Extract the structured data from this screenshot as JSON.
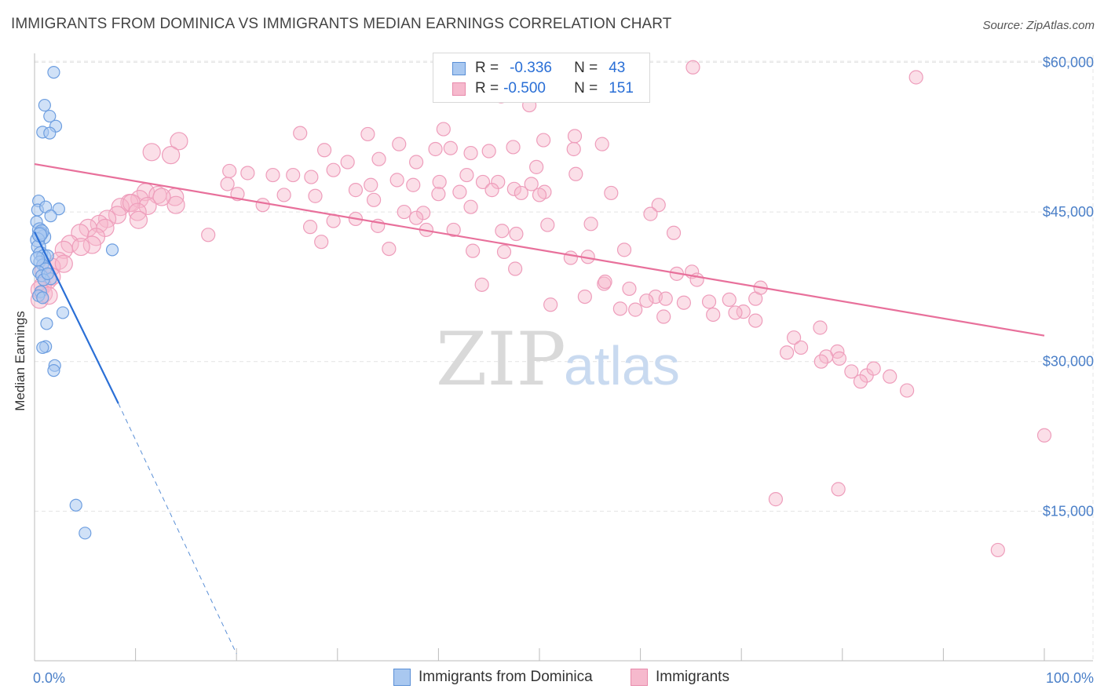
{
  "title": "IMMIGRANTS FROM DOMINICA VS IMMIGRANTS MEDIAN EARNINGS CORRELATION CHART",
  "source": "Source: ZipAtlas.com",
  "watermark": {
    "zip": "ZIP",
    "atlas": "atlas"
  },
  "colors": {
    "blue": "#2a6fd6",
    "blue_fill": "#a9c8f0",
    "pink": "#e87aa0",
    "pink_fill": "#f6b9cd",
    "tick": "#4a7fc8"
  },
  "legend": {
    "r_label": "R =",
    "n_label": "N =",
    "rows": [
      {
        "r": "-0.336",
        "n": "43",
        "series": "blue"
      },
      {
        "r": "-0.500",
        "n": "151",
        "series": "pink"
      }
    ]
  },
  "chart_data": {
    "type": "scatter",
    "title": "IMMIGRANTS FROM DOMINICA VS IMMIGRANTS MEDIAN EARNINGS CORRELATION CHART",
    "xlabel": "",
    "ylabel": "Median Earnings",
    "xlim": [
      0,
      100
    ],
    "ylim": [
      0,
      62000
    ],
    "x_tick_labels": [
      "0.0%",
      "100.0%"
    ],
    "y_ticks": [
      {
        "value": 15000,
        "label": "$15,000"
      },
      {
        "value": 30000,
        "label": "$30,000"
      },
      {
        "value": 45000,
        "label": "$45,000"
      },
      {
        "value": 60000,
        "label": "$60,000"
      }
    ],
    "series": [
      {
        "name": "Immigrants from Dominica",
        "color": "#2a6fd6",
        "trend": {
          "x0": 0.0,
          "y0": 43000,
          "x1": 8.3,
          "y1": 25800,
          "dash_to_x": 20.0,
          "dash_to_y": 700
        },
        "points": [
          [
            1.9,
            59000
          ],
          [
            1.0,
            55700
          ],
          [
            1.5,
            54600
          ],
          [
            2.1,
            53600
          ],
          [
            0.8,
            53000
          ],
          [
            1.5,
            52900
          ],
          [
            0.4,
            46100
          ],
          [
            0.3,
            45200
          ],
          [
            1.1,
            45500
          ],
          [
            2.4,
            45300
          ],
          [
            1.6,
            44600
          ],
          [
            0.2,
            44000
          ],
          [
            0.5,
            43200
          ],
          [
            0.6,
            42800
          ],
          [
            0.9,
            42500
          ],
          [
            0.7,
            43000
          ],
          [
            0.3,
            42200
          ],
          [
            0.4,
            41500
          ],
          [
            0.6,
            40800
          ],
          [
            0.9,
            40500
          ],
          [
            1.3,
            40600
          ],
          [
            0.5,
            40000
          ],
          [
            0.8,
            39700
          ],
          [
            1.1,
            39300
          ],
          [
            0.4,
            39000
          ],
          [
            0.7,
            38600
          ],
          [
            1.6,
            38300
          ],
          [
            0.9,
            38200
          ],
          [
            0.6,
            37000
          ],
          [
            0.4,
            36600
          ],
          [
            0.8,
            36400
          ],
          [
            2.8,
            34900
          ],
          [
            1.2,
            33800
          ],
          [
            1.1,
            31500
          ],
          [
            0.8,
            31400
          ],
          [
            2.0,
            29600
          ],
          [
            1.9,
            29100
          ],
          [
            7.7,
            41200
          ],
          [
            4.1,
            15600
          ],
          [
            5.0,
            12800
          ],
          [
            0.3,
            40300
          ],
          [
            1.3,
            38800
          ],
          [
            0.5,
            42700
          ]
        ]
      },
      {
        "name": "Immigrants",
        "color": "#e87aa0",
        "trend": {
          "x0": 0.0,
          "y0": 49800,
          "x1": 100.0,
          "y1": 32600
        },
        "points": [
          [
            65.2,
            59500
          ],
          [
            87.3,
            58500
          ],
          [
            46.2,
            56600
          ],
          [
            49.0,
            55700
          ],
          [
            40.5,
            53300
          ],
          [
            33.0,
            52800
          ],
          [
            14.3,
            52100
          ],
          [
            50.4,
            52200
          ],
          [
            53.5,
            52600
          ],
          [
            47.4,
            51500
          ],
          [
            26.3,
            52900
          ],
          [
            36.1,
            51800
          ],
          [
            41.2,
            51400
          ],
          [
            28.7,
            51200
          ],
          [
            39.7,
            51300
          ],
          [
            45.0,
            51100
          ],
          [
            56.2,
            51800
          ],
          [
            53.4,
            51300
          ],
          [
            34.1,
            50300
          ],
          [
            31.0,
            50000
          ],
          [
            43.2,
            50900
          ],
          [
            13.5,
            50700
          ],
          [
            11.6,
            51000
          ],
          [
            37.8,
            50000
          ],
          [
            49.7,
            49500
          ],
          [
            53.6,
            48800
          ],
          [
            23.6,
            48700
          ],
          [
            25.6,
            48700
          ],
          [
            29.6,
            49200
          ],
          [
            19.3,
            49100
          ],
          [
            21.1,
            48900
          ],
          [
            44.4,
            48000
          ],
          [
            45.9,
            48000
          ],
          [
            49.2,
            47800
          ],
          [
            37.5,
            47700
          ],
          [
            33.3,
            47700
          ],
          [
            27.4,
            48500
          ],
          [
            35.9,
            48200
          ],
          [
            40.1,
            48000
          ],
          [
            42.8,
            48700
          ],
          [
            19.1,
            47800
          ],
          [
            31.8,
            47200
          ],
          [
            42.1,
            47000
          ],
          [
            47.5,
            47300
          ],
          [
            45.3,
            47200
          ],
          [
            50.5,
            47000
          ],
          [
            48.2,
            46900
          ],
          [
            57.1,
            46900
          ],
          [
            50.0,
            46700
          ],
          [
            33.6,
            46200
          ],
          [
            20.1,
            46800
          ],
          [
            24.7,
            46700
          ],
          [
            13.9,
            46500
          ],
          [
            11.0,
            47000
          ],
          [
            12.2,
            46700
          ],
          [
            10.4,
            46300
          ],
          [
            9.4,
            45900
          ],
          [
            8.5,
            45500
          ],
          [
            9.6,
            45900
          ],
          [
            14.0,
            45700
          ],
          [
            12.6,
            46500
          ],
          [
            11.2,
            45600
          ],
          [
            10.2,
            45000
          ],
          [
            22.6,
            45700
          ],
          [
            27.8,
            46600
          ],
          [
            43.2,
            45500
          ],
          [
            38.5,
            44900
          ],
          [
            36.6,
            45000
          ],
          [
            61.8,
            45700
          ],
          [
            61.0,
            44800
          ],
          [
            8.2,
            44700
          ],
          [
            7.2,
            44300
          ],
          [
            10.3,
            44200
          ],
          [
            6.4,
            43800
          ],
          [
            7.0,
            43400
          ],
          [
            5.3,
            43400
          ],
          [
            4.5,
            42900
          ],
          [
            6.1,
            42500
          ],
          [
            31.8,
            44300
          ],
          [
            29.6,
            44100
          ],
          [
            37.8,
            44400
          ],
          [
            34.0,
            43600
          ],
          [
            27.3,
            43500
          ],
          [
            38.8,
            43200
          ],
          [
            41.5,
            43200
          ],
          [
            46.3,
            43100
          ],
          [
            50.8,
            43700
          ],
          [
            55.1,
            43800
          ],
          [
            47.7,
            42800
          ],
          [
            5.7,
            41700
          ],
          [
            3.5,
            41800
          ],
          [
            4.6,
            41500
          ],
          [
            2.9,
            41200
          ],
          [
            17.2,
            42700
          ],
          [
            28.4,
            42000
          ],
          [
            35.1,
            41300
          ],
          [
            43.4,
            41100
          ],
          [
            46.5,
            41000
          ],
          [
            53.1,
            40400
          ],
          [
            54.8,
            40500
          ],
          [
            2.4,
            40100
          ],
          [
            1.7,
            39500
          ],
          [
            2.9,
            39800
          ],
          [
            0.9,
            39100
          ],
          [
            1.7,
            38500
          ],
          [
            1.3,
            38100
          ],
          [
            0.8,
            37600
          ],
          [
            0.5,
            37200
          ],
          [
            0.9,
            36800
          ],
          [
            0.5,
            36200
          ],
          [
            1.4,
            36600
          ],
          [
            47.6,
            39300
          ],
          [
            44.3,
            37700
          ],
          [
            58.4,
            41200
          ],
          [
            63.6,
            38800
          ],
          [
            65.1,
            39000
          ],
          [
            56.4,
            37800
          ],
          [
            58.9,
            37300
          ],
          [
            61.5,
            36500
          ],
          [
            60.6,
            36100
          ],
          [
            62.5,
            36300
          ],
          [
            64.3,
            35900
          ],
          [
            66.8,
            36000
          ],
          [
            68.8,
            36200
          ],
          [
            70.2,
            35000
          ],
          [
            71.4,
            36300
          ],
          [
            67.2,
            34700
          ],
          [
            71.4,
            34100
          ],
          [
            69.4,
            34900
          ],
          [
            75.2,
            32400
          ],
          [
            77.8,
            33400
          ],
          [
            74.5,
            30900
          ],
          [
            79.5,
            31000
          ],
          [
            78.4,
            30500
          ],
          [
            75.9,
            31400
          ],
          [
            77.9,
            30000
          ],
          [
            80.9,
            29000
          ],
          [
            79.7,
            30300
          ],
          [
            82.4,
            28600
          ],
          [
            83.1,
            29300
          ],
          [
            81.8,
            28000
          ],
          [
            86.4,
            27100
          ],
          [
            84.7,
            28500
          ],
          [
            100.0,
            22600
          ],
          [
            79.6,
            17200
          ],
          [
            73.4,
            16200
          ],
          [
            95.4,
            11100
          ],
          [
            40.0,
            46800
          ],
          [
            63.3,
            42900
          ],
          [
            56.5,
            38000
          ],
          [
            65.6,
            38200
          ],
          [
            71.9,
            37400
          ],
          [
            54.5,
            36500
          ],
          [
            51.1,
            35700
          ],
          [
            59.5,
            35200
          ],
          [
            62.3,
            34500
          ],
          [
            58.0,
            35300
          ]
        ]
      }
    ]
  },
  "bottom_legend": [
    {
      "label": "Immigrants from Dominica",
      "series": "blue"
    },
    {
      "label": "Immigrants",
      "series": "pink"
    }
  ]
}
